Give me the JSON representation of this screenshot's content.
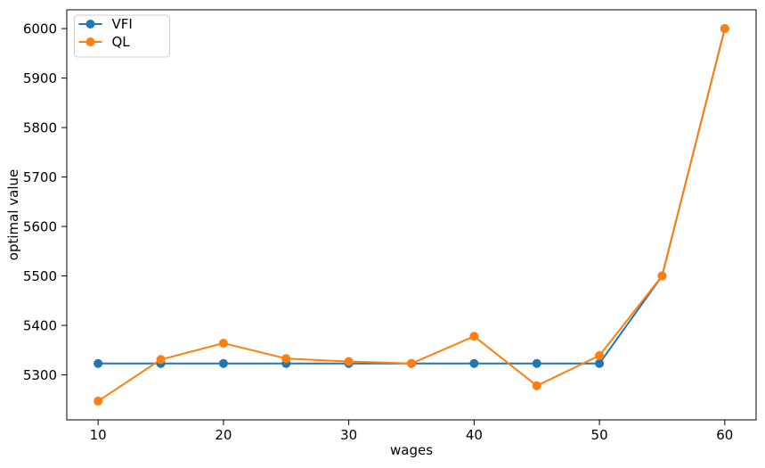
{
  "figure": {
    "background": "#ffffff",
    "axis_color": "#000000",
    "text_color": "#000000"
  },
  "chart_data": {
    "type": "line",
    "title": "",
    "xlabel": "wages",
    "ylabel": "optimal value",
    "x": [
      10,
      15,
      20,
      25,
      30,
      35,
      40,
      45,
      50,
      55,
      60
    ],
    "series": [
      {
        "name": "VFI",
        "color": "#1f77b4",
        "marker": "circle",
        "values": [
          5323,
          5323,
          5323,
          5323,
          5323,
          5323,
          5323,
          5323,
          5323,
          5500,
          6000
        ]
      },
      {
        "name": "QL",
        "color": "#ff7f0e",
        "marker": "circle",
        "values": [
          5247,
          5331,
          5364,
          5333,
          5327,
          5323,
          5378,
          5278,
          5339,
          5500,
          6000
        ]
      }
    ],
    "xticks": [
      10,
      20,
      30,
      40,
      50,
      60
    ],
    "yticks": [
      5300,
      5400,
      5500,
      5600,
      5700,
      5800,
      5900,
      6000
    ],
    "xlim": [
      7.5,
      62.5
    ],
    "ylim": [
      5209,
      6038
    ],
    "grid": false,
    "legend": {
      "position": "upper left",
      "frame_fill": "rgba(255,255,255,0.8)",
      "frame_edge": "#cccccc",
      "entries": [
        "VFI",
        "QL"
      ]
    }
  }
}
